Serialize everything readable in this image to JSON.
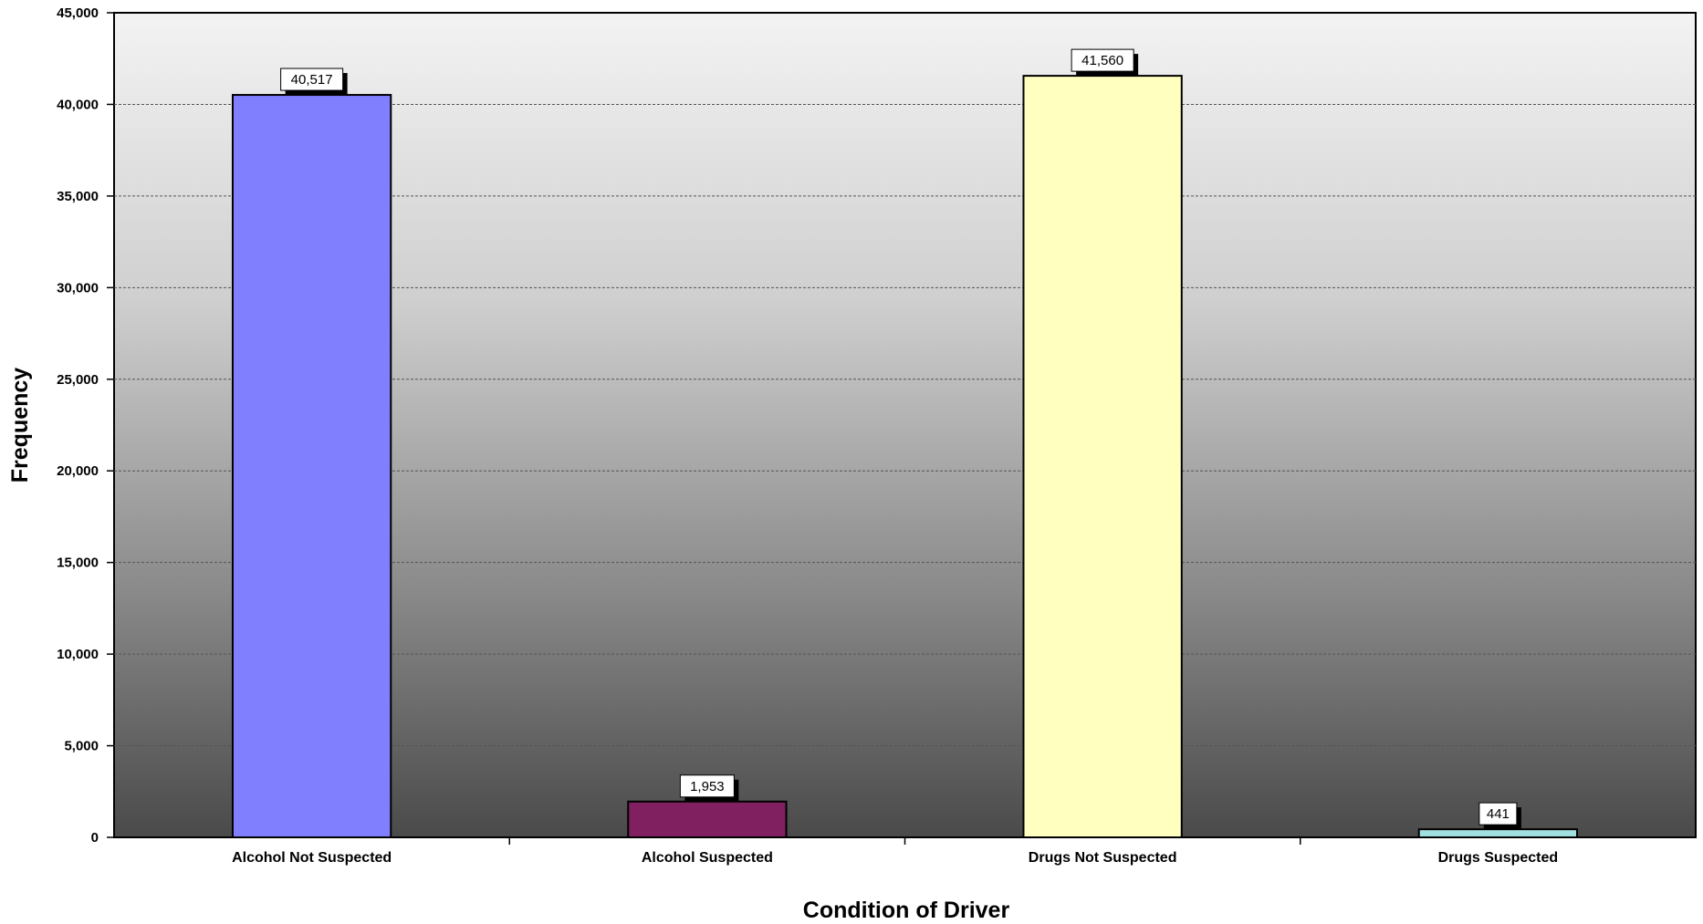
{
  "chart_data": {
    "type": "bar",
    "title": "",
    "xlabel": "Condition of Driver",
    "ylabel": "Frequency",
    "ylim": [
      0,
      45000
    ],
    "yticks": [
      "0",
      "5,000",
      "10,000",
      "15,000",
      "20,000",
      "25,000",
      "30,000",
      "35,000",
      "40,000",
      "45,000"
    ],
    "ytick_values": [
      0,
      5000,
      10000,
      15000,
      20000,
      25000,
      30000,
      35000,
      40000,
      45000
    ],
    "categories": [
      "Alcohol Not Suspected",
      "Alcohol Suspected",
      "Drugs Not Suspected",
      "Drugs Suspected"
    ],
    "values": [
      40517,
      1953,
      41560,
      441
    ],
    "value_labels": [
      "40,517",
      "1,953",
      "41,560",
      "441"
    ],
    "bar_colors": [
      "#8080ff",
      "#802060",
      "#ffffc0",
      "#a0e0e0"
    ],
    "grid": true,
    "legend": "none",
    "background": "gradient light-gray to dark-gray"
  }
}
